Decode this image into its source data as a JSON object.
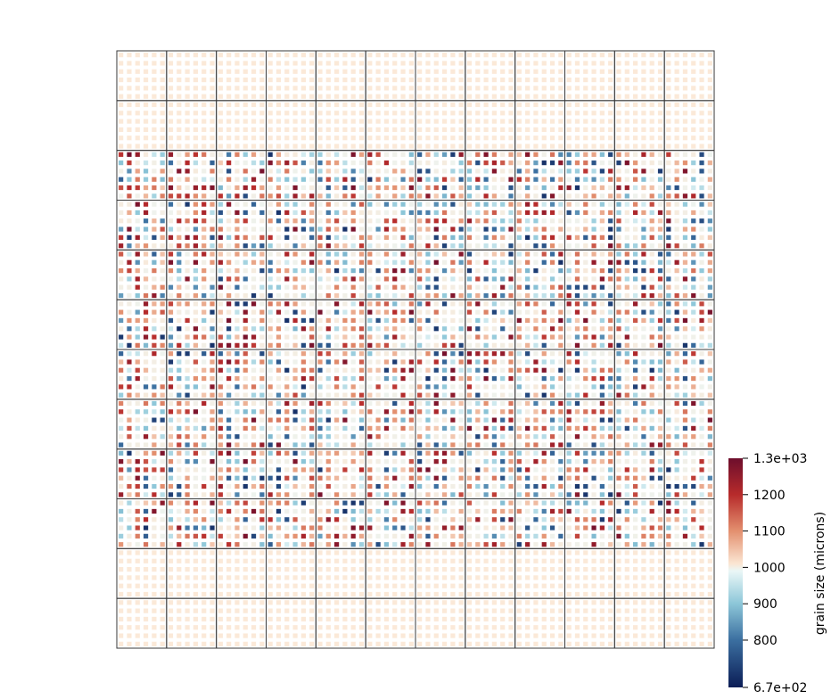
{
  "chart_data": {
    "type": "heatmap",
    "title": "",
    "grid": {
      "tile_rows": 12,
      "tile_cols": 12,
      "cells_per_tile": 6,
      "uniform_tile_rows": [
        0,
        1,
        10,
        11
      ],
      "uniform_value": 1000
    },
    "colorbar": {
      "title": "grain size (microns)",
      "range": [
        670,
        1300
      ],
      "colormap": "diverging blue-white-red",
      "colormap_stops": [
        {
          "value": 670,
          "color": "#0b1d56"
        },
        {
          "value": 800,
          "color": "#3b6fa0"
        },
        {
          "value": 900,
          "color": "#8cc6d8"
        },
        {
          "value": 990,
          "color": "#eaf7f7"
        },
        {
          "value": 1010,
          "color": "#fbe6d3"
        },
        {
          "value": 1100,
          "color": "#e3906f"
        },
        {
          "value": 1200,
          "color": "#b72b2b"
        },
        {
          "value": 1300,
          "color": "#6d0e2c"
        }
      ],
      "ticks": [
        {
          "value": 1300,
          "label": "1.3e+03"
        },
        {
          "value": 1200,
          "label": "1200"
        },
        {
          "value": 1100,
          "label": "1100"
        },
        {
          "value": 1000,
          "label": "1000"
        },
        {
          "value": 900,
          "label": "900"
        },
        {
          "value": 800,
          "label": "800"
        },
        {
          "value": 670,
          "label": "6.7e+02"
        }
      ]
    }
  }
}
